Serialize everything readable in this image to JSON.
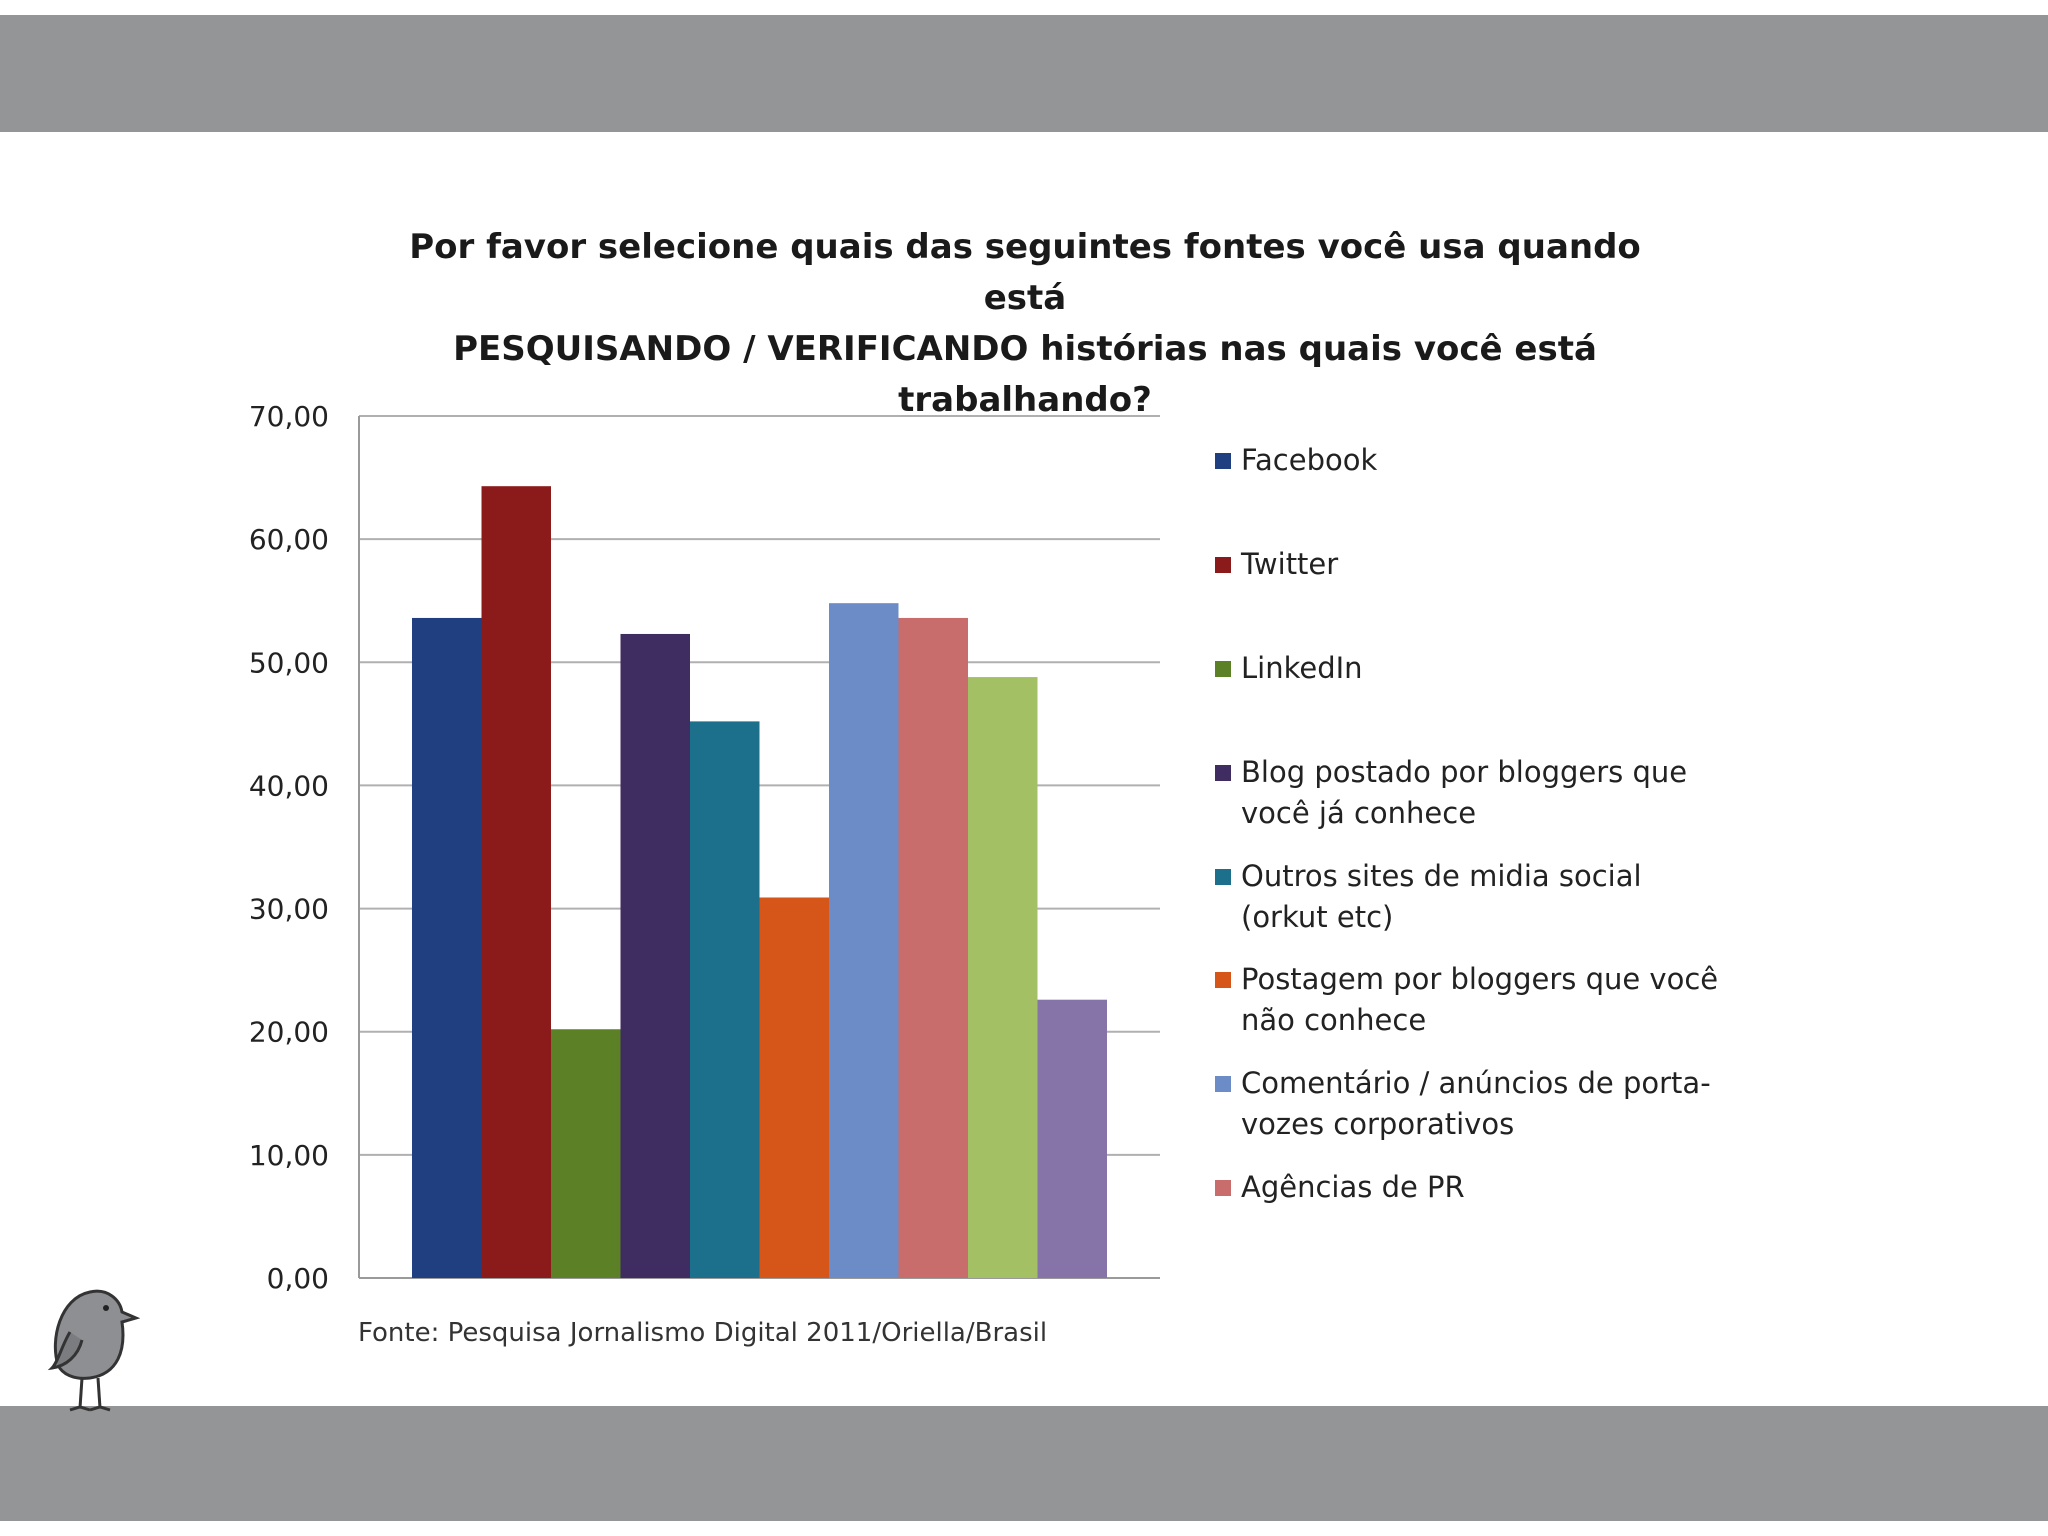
{
  "chart_data": {
    "type": "bar",
    "title": "Por favor selecione quais das seguintes fontes você usa quando está PESQUISANDO / VERIFICANDO histórias nas quais você está trabalhando?",
    "xlabel": "",
    "ylabel": "",
    "ylim": [
      0,
      70
    ],
    "yticks": [
      "0,00",
      "10,00",
      "20,00",
      "30,00",
      "40,00",
      "50,00",
      "60,00",
      "70,00"
    ],
    "grid": true,
    "legend_position": "right",
    "series": [
      {
        "name": "Facebook",
        "value": 53.6,
        "color": "#1f3f80"
      },
      {
        "name": "Twitter",
        "value": 64.3,
        "color": "#8b1b1b"
      },
      {
        "name": "LinkedIn",
        "value": 20.2,
        "color": "#5b8026"
      },
      {
        "name": "Blog postado por bloggers que você já conhece",
        "value": 52.3,
        "color": "#3f2d62"
      },
      {
        "name": "Outros sites de midia social (orkut etc)",
        "value": 45.2,
        "color": "#1c708c"
      },
      {
        "name": "Postagem por bloggers que você não conhece",
        "value": 30.9,
        "color": "#d6561a"
      },
      {
        "name": "Comentário / anúncios de porta-vozes corporativos",
        "value": 54.8,
        "color": "#6c8cc7"
      },
      {
        "name": "Agências de PR",
        "value": 53.6,
        "color": "#c86c6c"
      },
      {
        "name": null,
        "value": 48.8,
        "color": "#a3c064"
      },
      {
        "name": null,
        "value": 22.6,
        "color": "#8673a8"
      }
    ]
  },
  "legend": [
    {
      "label_lines": [
        "Facebook"
      ],
      "color": "#1f3f80"
    },
    {
      "label_lines": [
        "Twitter"
      ],
      "color": "#8b1b1b"
    },
    {
      "label_lines": [
        "LinkedIn"
      ],
      "color": "#5b8026"
    },
    {
      "label_lines": [
        "Blog postado por bloggers que",
        "você já conhece"
      ],
      "color": "#3f2d62"
    },
    {
      "label_lines": [
        "Outros sites de midia social",
        "(orkut etc)"
      ],
      "color": "#1c708c"
    },
    {
      "label_lines": [
        "Postagem por bloggers que você",
        "não conhece"
      ],
      "color": "#d6561a"
    },
    {
      "label_lines": [
        "Comentário / anúncios de porta-",
        "vozes corporativos"
      ],
      "color": "#6c8cc7"
    },
    {
      "label_lines": [
        "Agências de PR"
      ],
      "color": "#c86c6c"
    }
  ],
  "title_lines": [
    "Por favor selecione quais das seguintes fontes você usa quando está",
    "PESQUISANDO / VERIFICANDO histórias nas quais você está",
    "trabalhando?"
  ],
  "source": "Fonte: Pesquisa Jornalismo Digital 2011/Oriella/Brasil",
  "colors": {
    "band": "#939597",
    "grid": "#b0b0b0",
    "axis": "#9a9a9a"
  },
  "decorations": {
    "mascot": "bird-icon"
  }
}
